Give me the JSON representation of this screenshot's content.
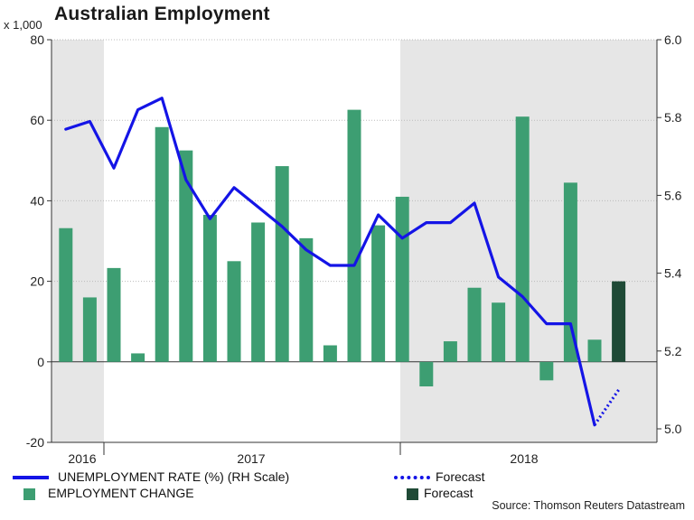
{
  "title": "Australian Employment",
  "unit_label": "x 1,000",
  "legend": {
    "rate_label": "UNEMPLOYMENT RATE (%) (RH Scale)",
    "rate_forecast_label": "Forecast",
    "change_label": "EMPLOYMENT CHANGE",
    "change_forecast_label": "Forecast"
  },
  "source": "Source: Thomson Reuters Datastream",
  "colors": {
    "bar": "#3d9e72",
    "bar_forecast": "#1f4a36",
    "line": "#1414e6",
    "shade": "#e6e6e6",
    "grid": "#bbbbbb"
  },
  "chart_data": {
    "type": "bar+line",
    "months": [
      "2016-05",
      "2016-06",
      "2016-07",
      "2016-08",
      "2016-09",
      "2016-10",
      "2016-11",
      "2016-12",
      "2017-01",
      "2017-02",
      "2017-03",
      "2017-04",
      "2017-05",
      "2017-06",
      "2017-07",
      "2017-08",
      "2017-09",
      "2017-10",
      "2017-11",
      "2017-12",
      "2018-01",
      "2018-02",
      "2018-03",
      "2018-04",
      "2018-05",
      "2018-06",
      "2018-07"
    ],
    "employment_change": [
      33.2,
      16.0,
      23.3,
      2.1,
      58.3,
      52.5,
      36.5,
      25.0,
      34.6,
      48.6,
      30.7,
      4.1,
      62.6,
      33.9,
      41.0,
      -6.1,
      5.1,
      18.4,
      14.7,
      60.9,
      -4.6,
      44.5,
      5.5
    ],
    "employment_forecast": [
      {
        "month": "2018-07",
        "value": 20.0
      }
    ],
    "unemployment_rate": [
      5.77,
      5.79,
      5.67,
      5.82,
      5.85,
      5.64,
      5.54,
      5.62,
      5.57,
      5.52,
      5.46,
      5.42,
      5.42,
      5.55,
      5.49,
      5.53,
      5.53,
      5.58,
      5.39,
      5.34,
      5.27,
      5.27,
      5.01
    ],
    "unemployment_forecast": [
      5.01,
      5.1
    ],
    "x_labels": [
      "2016",
      "2017",
      "2018"
    ],
    "left_axis": {
      "ylim": [
        -20,
        80
      ],
      "ticks": [
        -20,
        0,
        20,
        40,
        60,
        80
      ]
    },
    "right_axis": {
      "label": "RH Scale",
      "ylim": [
        4.95,
        6.0
      ],
      "ticks": [
        "5.0",
        "5.2",
        "5.4",
        "5.6",
        "5.8",
        "6.0"
      ]
    },
    "grid": true,
    "shaded_periods": [
      "2016",
      "2018"
    ]
  }
}
